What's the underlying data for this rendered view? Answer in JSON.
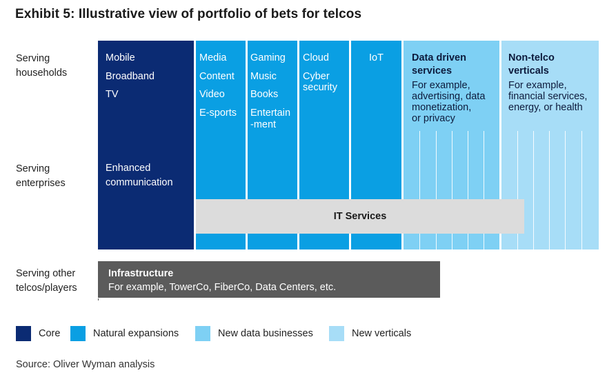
{
  "title": "Exhibit 5: Illustrative view of portfolio of bets for telcos",
  "rows": {
    "households": [
      "Serving",
      "households"
    ],
    "enterprises": [
      "Serving",
      "enterprises"
    ],
    "others": [
      "Serving other",
      "telcos/players"
    ]
  },
  "core": {
    "items": [
      "Mobile",
      "Broadband",
      "TV"
    ],
    "enterprise": [
      "Enhanced",
      "communication"
    ]
  },
  "natural": {
    "media": [
      "Media",
      "Content",
      "Video",
      "E-sports"
    ],
    "gaming": [
      "Gaming",
      "Music",
      "Books",
      "Entertain",
      "-ment"
    ],
    "cloud": [
      "Cloud",
      "Cyber",
      "security"
    ],
    "iot": "IoT"
  },
  "data_driven": {
    "heading": [
      "Data driven",
      "services"
    ],
    "body": [
      "For example,",
      "advertising, data",
      "monetization,",
      "or privacy"
    ]
  },
  "non_telco": {
    "heading": [
      "Non-telco",
      "verticals"
    ],
    "body": [
      "For example,",
      "financial services,",
      "energy, or health"
    ]
  },
  "it_services": "IT Services",
  "infrastructure": {
    "heading": "Infrastructure",
    "body": "For example, TowerCo, FiberCo, Data Centers, etc."
  },
  "legend": [
    {
      "label": "Core",
      "color": "#0b2b73"
    },
    {
      "label": "Natural expansions",
      "color": "#0a9fe3"
    },
    {
      "label": "New data businesses",
      "color": "#7ed0f4"
    },
    {
      "label": "New verticals",
      "color": "#a7ddf7"
    }
  ],
  "source": "Source: Oliver Wyman analysis"
}
